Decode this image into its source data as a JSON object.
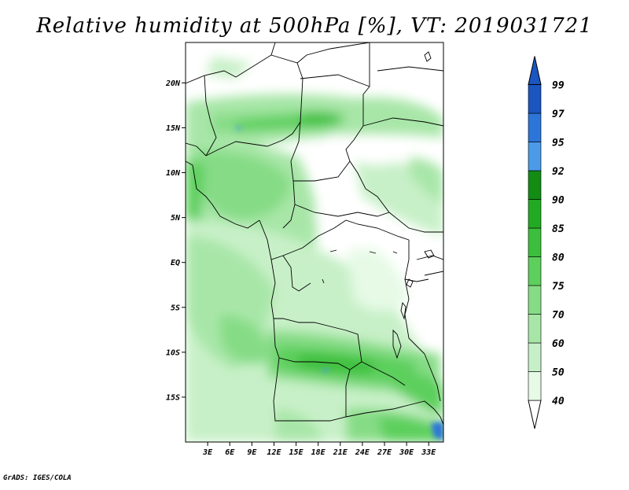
{
  "title": "Relative humidity at 500hPa [%], VT: 2019031721",
  "credit": "GrADS: IGES/COLA",
  "map": {
    "lat_ticks": [
      "20N",
      "15N",
      "10N",
      "5N",
      "EQ",
      "5S",
      "10S",
      "15S"
    ],
    "lon_ticks": [
      "3E",
      "6E",
      "9E",
      "12E",
      "15E",
      "18E",
      "21E",
      "24E",
      "27E",
      "30E",
      "33E"
    ],
    "lon_range": [
      0,
      35
    ],
    "lat_range": [
      -20,
      24.5
    ]
  },
  "colorbar": {
    "levels": [
      "40",
      "50",
      "60",
      "70",
      "75",
      "80",
      "85",
      "90",
      "92",
      "95",
      "97",
      "99"
    ],
    "colors": [
      "#ffffff",
      "#e6fae6",
      "#c8f0c8",
      "#a8e6a8",
      "#86dc86",
      "#5ccf5c",
      "#3cbf3c",
      "#22aa22",
      "#138c13",
      "#4b9be8",
      "#2b76d8",
      "#1b55c0"
    ]
  },
  "chart_data": {
    "type": "heatmap",
    "title": "Relative humidity at 500hPa [%], VT: 2019031721",
    "xlabel": "",
    "ylabel": "",
    "x_ticks": [
      "3E",
      "6E",
      "9E",
      "12E",
      "15E",
      "18E",
      "21E",
      "24E",
      "27E",
      "30E",
      "33E"
    ],
    "y_ticks": [
      "20N",
      "15N",
      "10N",
      "5N",
      "EQ",
      "5S",
      "10S",
      "15S"
    ],
    "xlim": [
      0,
      35
    ],
    "ylim": [
      -20,
      24.5
    ],
    "color_levels": [
      40,
      50,
      60,
      70,
      75,
      80,
      85,
      90,
      92,
      95,
      97,
      99
    ]
  }
}
